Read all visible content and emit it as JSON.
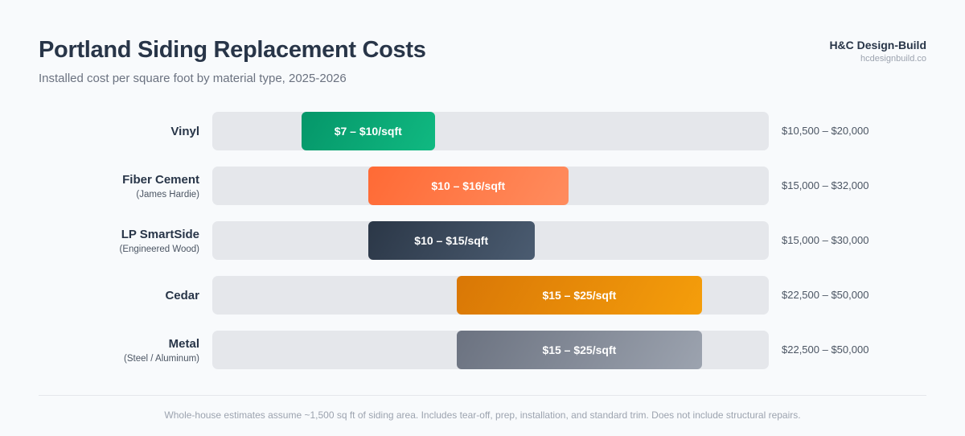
{
  "header": {
    "title": "Portland Siding Replacement Costs",
    "subtitle": "Installed cost per square foot by material type, 2025-2026",
    "brand_name": "H&C Design-Build",
    "brand_url": "hcdesignbuild.co"
  },
  "chart_data": {
    "type": "bar",
    "orientation": "horizontal-range",
    "title": "Portland Siding Replacement Costs",
    "subtitle": "Installed cost per square foot by material type, 2025-2026",
    "unit": "$/sqft",
    "grid": false,
    "rows": [
      {
        "material": "Vinyl",
        "note": "",
        "min": 7,
        "max": 10,
        "label": "$7 – $10/sqft",
        "total": "$10,500 – $20,000",
        "color": "#10b981"
      },
      {
        "material": "Fiber Cement",
        "note": "(James Hardie)",
        "min": 10,
        "max": 16,
        "label": "$10 – $16/sqft",
        "total": "$15,000 – $32,000",
        "color": "#ff7a45"
      },
      {
        "material": "LP SmartSide",
        "note": "(Engineered Wood)",
        "min": 10,
        "max": 15,
        "label": "$10 – $15/sqft",
        "total": "$15,000 – $30,000",
        "color": "#3a4a5e"
      },
      {
        "material": "Cedar",
        "note": "",
        "min": 15,
        "max": 25,
        "label": "$15 – $25/sqft",
        "total": "$22,500 – $50,000",
        "color": "#f59e0b"
      },
      {
        "material": "Metal",
        "note": "(Steel / Aluminum)",
        "min": 15,
        "max": 25,
        "label": "$15 – $25/sqft",
        "total": "$22,500 – $50,000",
        "color": "#8b92a0"
      }
    ]
  },
  "footnote": "Whole-house estimates assume ~1,500 sq ft of siding area. Includes tear-off, prep, installation, and standard trim. Does not include structural repairs."
}
